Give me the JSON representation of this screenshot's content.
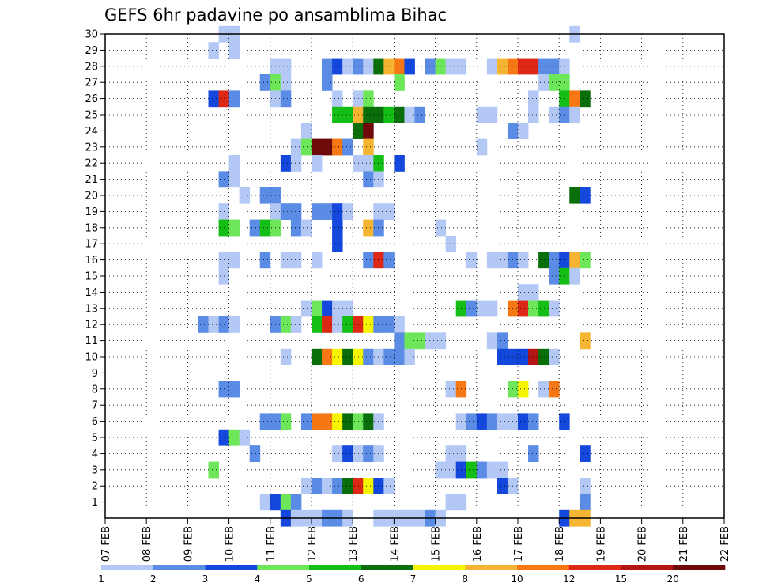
{
  "chart_data": {
    "type": "heatmap",
    "title": "GEFS 6hr padavine po ansamblima Bihac",
    "xlabel": "",
    "ylabel": "",
    "x_start": "07 FEB 00Z",
    "x_step_hours": 6,
    "x_tick_labels": [
      "07 FEB",
      "08 FEB",
      "09 FEB",
      "10 FEB",
      "11 FEB",
      "12 FEB",
      "13 FEB",
      "14 FEB",
      "15 FEB",
      "16 FEB",
      "17 FEB",
      "18 FEB",
      "19 FEB",
      "20 FEB",
      "21 FEB",
      "22 FEB"
    ],
    "y_tick_labels": [
      "1",
      "2",
      "3",
      "4",
      "5",
      "6",
      "7",
      "8",
      "9",
      "10",
      "11",
      "12",
      "13",
      "14",
      "15",
      "16",
      "17",
      "18",
      "19",
      "20",
      "21",
      "22",
      "23",
      "24",
      "25",
      "26",
      "27",
      "28",
      "29",
      "30"
    ],
    "ylim": [
      0,
      30
    ],
    "grid": true,
    "legend_levels": [
      "1",
      "2",
      "3",
      "4",
      "5",
      "6",
      "7",
      "8",
      "10",
      "12",
      "15",
      "20"
    ],
    "legend_colors": [
      "#b4c8f5",
      "#5a8ce6",
      "#1448dc",
      "#6ee65a",
      "#14be14",
      "#0a6e0a",
      "#f5f500",
      "#f5b432",
      "#f57814",
      "#dc2814",
      "#b41414",
      "#6e0a0a"
    ],
    "cells": [
      [
        11,
        30,
        1
      ],
      [
        12,
        30,
        1
      ],
      [
        45,
        30,
        1
      ],
      [
        10,
        29,
        1
      ],
      [
        12,
        29,
        1
      ],
      [
        16,
        28,
        1
      ],
      [
        17,
        28,
        1
      ],
      [
        21,
        28,
        2
      ],
      [
        22,
        28,
        3
      ],
      [
        23,
        28,
        1
      ],
      [
        24,
        28,
        2
      ],
      [
        25,
        28,
        1
      ],
      [
        26,
        28,
        6
      ],
      [
        27,
        28,
        8
      ],
      [
        28,
        28,
        9
      ],
      [
        29,
        28,
        3
      ],
      [
        31,
        28,
        2
      ],
      [
        32,
        28,
        4
      ],
      [
        33,
        28,
        1
      ],
      [
        34,
        28,
        1
      ],
      [
        37,
        28,
        1
      ],
      [
        38,
        28,
        8
      ],
      [
        39,
        28,
        9
      ],
      [
        40,
        28,
        10
      ],
      [
        41,
        28,
        10
      ],
      [
        42,
        28,
        2
      ],
      [
        43,
        28,
        2
      ],
      [
        44,
        28,
        1
      ],
      [
        15,
        27,
        2
      ],
      [
        16,
        27,
        4
      ],
      [
        17,
        27,
        1
      ],
      [
        21,
        27,
        2
      ],
      [
        28,
        27,
        4
      ],
      [
        42,
        27,
        1
      ],
      [
        43,
        27,
        4
      ],
      [
        44,
        27,
        4
      ],
      [
        10,
        26,
        3
      ],
      [
        11,
        26,
        10
      ],
      [
        12,
        26,
        2
      ],
      [
        16,
        26,
        1
      ],
      [
        17,
        26,
        2
      ],
      [
        22,
        26,
        1
      ],
      [
        24,
        26,
        1
      ],
      [
        25,
        26,
        4
      ],
      [
        41,
        26,
        1
      ],
      [
        44,
        26,
        5
      ],
      [
        45,
        26,
        9
      ],
      [
        46,
        26,
        6
      ],
      [
        22,
        25,
        5
      ],
      [
        23,
        25,
        5
      ],
      [
        24,
        25,
        8
      ],
      [
        25,
        25,
        6
      ],
      [
        26,
        25,
        6
      ],
      [
        27,
        25,
        5
      ],
      [
        28,
        25,
        6
      ],
      [
        29,
        25,
        1
      ],
      [
        30,
        25,
        2
      ],
      [
        36,
        25,
        1
      ],
      [
        37,
        25,
        1
      ],
      [
        41,
        25,
        1
      ],
      [
        43,
        25,
        1
      ],
      [
        44,
        25,
        2
      ],
      [
        45,
        25,
        1
      ],
      [
        19,
        24,
        1
      ],
      [
        24,
        24,
        6
      ],
      [
        25,
        24,
        12
      ],
      [
        39,
        24,
        2
      ],
      [
        40,
        24,
        1
      ],
      [
        18,
        23,
        1
      ],
      [
        19,
        23,
        4
      ],
      [
        20,
        23,
        12
      ],
      [
        21,
        23,
        12
      ],
      [
        22,
        23,
        9
      ],
      [
        23,
        23,
        2
      ],
      [
        25,
        23,
        8
      ],
      [
        36,
        23,
        1
      ],
      [
        12,
        22,
        1
      ],
      [
        17,
        22,
        3
      ],
      [
        18,
        22,
        1
      ],
      [
        20,
        22,
        1
      ],
      [
        24,
        22,
        1
      ],
      [
        25,
        22,
        1
      ],
      [
        26,
        22,
        5
      ],
      [
        28,
        22,
        3
      ],
      [
        12,
        21,
        1
      ],
      [
        11,
        21,
        2
      ],
      [
        25,
        21,
        2
      ],
      [
        26,
        21,
        1
      ],
      [
        13,
        20,
        1
      ],
      [
        15,
        20,
        2
      ],
      [
        16,
        20,
        2
      ],
      [
        45,
        20,
        6
      ],
      [
        46,
        20,
        3
      ],
      [
        11,
        19,
        1
      ],
      [
        16,
        19,
        1
      ],
      [
        17,
        19,
        2
      ],
      [
        18,
        19,
        2
      ],
      [
        20,
        19,
        2
      ],
      [
        21,
        19,
        2
      ],
      [
        22,
        19,
        3
      ],
      [
        23,
        19,
        1
      ],
      [
        26,
        19,
        1
      ],
      [
        27,
        19,
        1
      ],
      [
        11,
        18,
        5
      ],
      [
        12,
        18,
        4
      ],
      [
        14,
        18,
        2
      ],
      [
        15,
        18,
        5
      ],
      [
        16,
        18,
        4
      ],
      [
        18,
        18,
        2
      ],
      [
        19,
        18,
        1
      ],
      [
        22,
        18,
        3
      ],
      [
        25,
        18,
        8
      ],
      [
        26,
        18,
        2
      ],
      [
        32,
        18,
        1
      ],
      [
        22,
        17,
        3
      ],
      [
        33,
        17,
        1
      ],
      [
        11,
        16,
        1
      ],
      [
        12,
        16,
        1
      ],
      [
        15,
        16,
        2
      ],
      [
        17,
        16,
        1
      ],
      [
        18,
        16,
        1
      ],
      [
        20,
        16,
        1
      ],
      [
        25,
        16,
        2
      ],
      [
        26,
        16,
        10
      ],
      [
        27,
        16,
        2
      ],
      [
        35,
        16,
        1
      ],
      [
        37,
        16,
        1
      ],
      [
        38,
        16,
        1
      ],
      [
        39,
        16,
        2
      ],
      [
        40,
        16,
        1
      ],
      [
        42,
        16,
        6
      ],
      [
        43,
        16,
        2
      ],
      [
        44,
        16,
        3
      ],
      [
        45,
        16,
        8
      ],
      [
        46,
        16,
        4
      ],
      [
        11,
        15,
        1
      ],
      [
        43,
        15,
        2
      ],
      [
        44,
        15,
        5
      ],
      [
        45,
        15,
        1
      ],
      [
        40,
        14,
        1
      ],
      [
        41,
        14,
        1
      ],
      [
        19,
        13,
        1
      ],
      [
        20,
        13,
        4
      ],
      [
        21,
        13,
        3
      ],
      [
        22,
        13,
        1
      ],
      [
        23,
        13,
        1
      ],
      [
        34,
        13,
        5
      ],
      [
        35,
        13,
        2
      ],
      [
        36,
        13,
        1
      ],
      [
        37,
        13,
        1
      ],
      [
        39,
        13,
        9
      ],
      [
        40,
        13,
        10
      ],
      [
        41,
        13,
        4
      ],
      [
        42,
        13,
        5
      ],
      [
        43,
        13,
        1
      ],
      [
        9,
        12,
        2
      ],
      [
        10,
        12,
        1
      ],
      [
        11,
        12,
        2
      ],
      [
        12,
        12,
        1
      ],
      [
        16,
        12,
        2
      ],
      [
        17,
        12,
        4
      ],
      [
        18,
        12,
        1
      ],
      [
        20,
        12,
        5
      ],
      [
        21,
        12,
        10
      ],
      [
        22,
        12,
        1
      ],
      [
        23,
        12,
        5
      ],
      [
        24,
        12,
        10
      ],
      [
        25,
        12,
        7
      ],
      [
        26,
        12,
        2
      ],
      [
        27,
        12,
        2
      ],
      [
        28,
        12,
        1
      ],
      [
        28,
        11,
        2
      ],
      [
        29,
        11,
        4
      ],
      [
        30,
        11,
        4
      ],
      [
        31,
        11,
        1
      ],
      [
        32,
        11,
        1
      ],
      [
        37,
        11,
        1
      ],
      [
        38,
        11,
        2
      ],
      [
        46,
        11,
        8
      ],
      [
        17,
        10,
        1
      ],
      [
        20,
        10,
        6
      ],
      [
        21,
        10,
        9
      ],
      [
        22,
        10,
        7
      ],
      [
        23,
        10,
        6
      ],
      [
        24,
        10,
        7
      ],
      [
        25,
        10,
        2
      ],
      [
        26,
        10,
        1
      ],
      [
        27,
        10,
        2
      ],
      [
        28,
        10,
        2
      ],
      [
        29,
        10,
        1
      ],
      [
        38,
        10,
        3
      ],
      [
        39,
        10,
        3
      ],
      [
        40,
        10,
        3
      ],
      [
        41,
        10,
        11
      ],
      [
        42,
        10,
        6
      ],
      [
        43,
        10,
        1
      ],
      [
        11,
        8,
        2
      ],
      [
        12,
        8,
        2
      ],
      [
        33,
        8,
        1
      ],
      [
        34,
        8,
        9
      ],
      [
        39,
        8,
        4
      ],
      [
        40,
        8,
        7
      ],
      [
        42,
        8,
        1
      ],
      [
        43,
        8,
        9
      ],
      [
        15,
        6,
        2
      ],
      [
        16,
        6,
        2
      ],
      [
        17,
        6,
        4
      ],
      [
        19,
        6,
        2
      ],
      [
        20,
        6,
        9
      ],
      [
        21,
        6,
        9
      ],
      [
        22,
        6,
        7
      ],
      [
        23,
        6,
        6
      ],
      [
        24,
        6,
        4
      ],
      [
        25,
        6,
        6
      ],
      [
        26,
        6,
        1
      ],
      [
        34,
        6,
        1
      ],
      [
        35,
        6,
        2
      ],
      [
        36,
        6,
        3
      ],
      [
        37,
        6,
        2
      ],
      [
        38,
        6,
        1
      ],
      [
        39,
        6,
        1
      ],
      [
        40,
        6,
        3
      ],
      [
        41,
        6,
        2
      ],
      [
        44,
        6,
        3
      ],
      [
        11,
        5,
        3
      ],
      [
        12,
        5,
        4
      ],
      [
        13,
        5,
        1
      ],
      [
        14,
        4,
        2
      ],
      [
        22,
        4,
        1
      ],
      [
        23,
        4,
        3
      ],
      [
        24,
        4,
        1
      ],
      [
        25,
        4,
        2
      ],
      [
        26,
        4,
        1
      ],
      [
        33,
        4,
        1
      ],
      [
        34,
        4,
        1
      ],
      [
        41,
        4,
        2
      ],
      [
        46,
        4,
        3
      ],
      [
        10,
        3,
        4
      ],
      [
        32,
        3,
        1
      ],
      [
        33,
        3,
        1
      ],
      [
        34,
        3,
        3
      ],
      [
        35,
        3,
        5
      ],
      [
        36,
        3,
        2
      ],
      [
        37,
        3,
        1
      ],
      [
        38,
        3,
        1
      ],
      [
        19,
        2,
        1
      ],
      [
        20,
        2,
        2
      ],
      [
        21,
        2,
        1
      ],
      [
        22,
        2,
        2
      ],
      [
        23,
        2,
        6
      ],
      [
        24,
        2,
        10
      ],
      [
        25,
        2,
        7
      ],
      [
        26,
        2,
        3
      ],
      [
        27,
        2,
        1
      ],
      [
        38,
        2,
        3
      ],
      [
        39,
        2,
        1
      ],
      [
        46,
        2,
        1
      ],
      [
        15,
        1,
        1
      ],
      [
        16,
        1,
        3
      ],
      [
        17,
        1,
        4
      ],
      [
        18,
        1,
        2
      ],
      [
        33,
        1,
        1
      ],
      [
        34,
        1,
        1
      ],
      [
        46,
        1,
        2
      ],
      [
        17,
        0,
        3
      ],
      [
        18,
        0,
        1
      ],
      [
        19,
        0,
        1
      ],
      [
        20,
        0,
        1
      ],
      [
        21,
        0,
        2
      ],
      [
        22,
        0,
        2
      ],
      [
        23,
        0,
        1
      ],
      [
        26,
        0,
        1
      ],
      [
        27,
        0,
        1
      ],
      [
        28,
        0,
        1
      ],
      [
        29,
        0,
        1
      ],
      [
        30,
        0,
        1
      ],
      [
        31,
        0,
        2
      ],
      [
        32,
        0,
        1
      ],
      [
        44,
        0,
        3
      ],
      [
        45,
        0,
        8
      ],
      [
        46,
        0,
        8
      ]
    ]
  }
}
